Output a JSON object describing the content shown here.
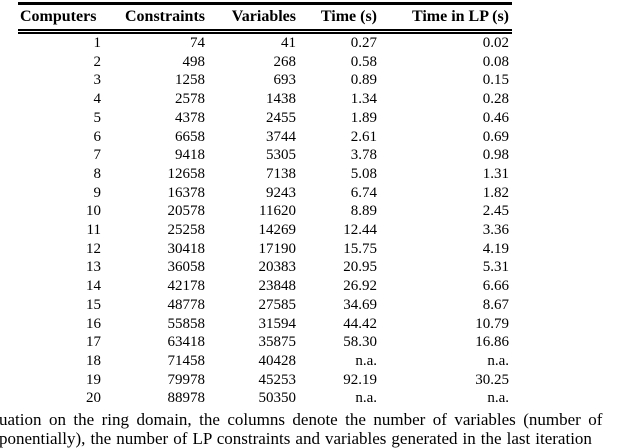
{
  "table": {
    "columns": [
      "Computers",
      "Constraints",
      "Variables",
      "Time (s)",
      "Time in LP (s)"
    ],
    "rows": [
      [
        "1",
        "74",
        "41",
        "0.27",
        "0.02"
      ],
      [
        "2",
        "498",
        "268",
        "0.58",
        "0.08"
      ],
      [
        "3",
        "1258",
        "693",
        "0.89",
        "0.15"
      ],
      [
        "4",
        "2578",
        "1438",
        "1.34",
        "0.28"
      ],
      [
        "5",
        "4378",
        "2455",
        "1.89",
        "0.46"
      ],
      [
        "6",
        "6658",
        "3744",
        "2.61",
        "0.69"
      ],
      [
        "7",
        "9418",
        "5305",
        "3.78",
        "0.98"
      ],
      [
        "8",
        "12658",
        "7138",
        "5.08",
        "1.31"
      ],
      [
        "9",
        "16378",
        "9243",
        "6.74",
        "1.82"
      ],
      [
        "10",
        "20578",
        "11620",
        "8.89",
        "2.45"
      ],
      [
        "11",
        "25258",
        "14269",
        "12.44",
        "3.36"
      ],
      [
        "12",
        "30418",
        "17190",
        "15.75",
        "4.19"
      ],
      [
        "13",
        "36058",
        "20383",
        "20.95",
        "5.31"
      ],
      [
        "14",
        "42178",
        "23848",
        "26.92",
        "6.66"
      ],
      [
        "15",
        "48778",
        "27585",
        "34.69",
        "8.67"
      ],
      [
        "16",
        "55858",
        "31594",
        "44.42",
        "10.79"
      ],
      [
        "17",
        "63418",
        "35875",
        "58.30",
        "16.86"
      ],
      [
        "18",
        "71458",
        "40428",
        "n.a.",
        "n.a."
      ],
      [
        "19",
        "79978",
        "45253",
        "92.19",
        "30.25"
      ],
      [
        "20",
        "88978",
        "50350",
        "n.a.",
        "n.a."
      ]
    ]
  },
  "caption": {
    "line1": "uation on the ring domain, the columns denote the number of variables (number of",
    "line2": "ponentially), the number of LP constraints and variables generated in the last iteration"
  },
  "colors": {
    "text": "#000000",
    "rule": "#000000",
    "background": "#ffffff"
  }
}
